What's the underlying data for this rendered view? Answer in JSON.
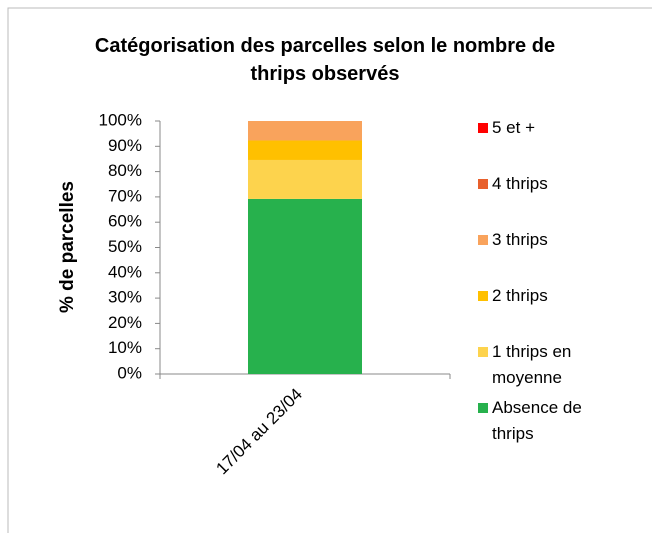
{
  "chart_data": {
    "type": "bar",
    "stacked": true,
    "title": "Catégorisation des parcelles selon le nombre de thrips observés",
    "ylabel": "% de parcelles",
    "categories": [
      "17/04 au 23/04"
    ],
    "series": [
      {
        "name": "Absence de thrips",
        "color": "#27b14d",
        "values": [
          69.2
        ]
      },
      {
        "name": "1 thrips en moyenne",
        "color": "#fdd34d",
        "values": [
          15.4
        ]
      },
      {
        "name": "2 thrips",
        "color": "#ffc000",
        "values": [
          7.7
        ]
      },
      {
        "name": "3 thrips",
        "color": "#f9a35c",
        "values": [
          7.7
        ]
      },
      {
        "name": "4 thrips",
        "color": "#e8602c",
        "values": [
          0
        ]
      },
      {
        "name": "5 et +",
        "color": "#ff0000",
        "values": [
          0
        ]
      }
    ],
    "ylim": [
      0,
      100
    ],
    "yticks": [
      {
        "value": 0,
        "label": "0%"
      },
      {
        "value": 10,
        "label": "10%"
      },
      {
        "value": 20,
        "label": "20%"
      },
      {
        "value": 30,
        "label": "30%"
      },
      {
        "value": 40,
        "label": "40%"
      },
      {
        "value": 50,
        "label": "50%"
      },
      {
        "value": 60,
        "label": "60%"
      },
      {
        "value": 70,
        "label": "70%"
      },
      {
        "value": 80,
        "label": "80%"
      },
      {
        "value": 90,
        "label": "90%"
      },
      {
        "value": 100,
        "label": "100%"
      }
    ],
    "legend": "right"
  }
}
